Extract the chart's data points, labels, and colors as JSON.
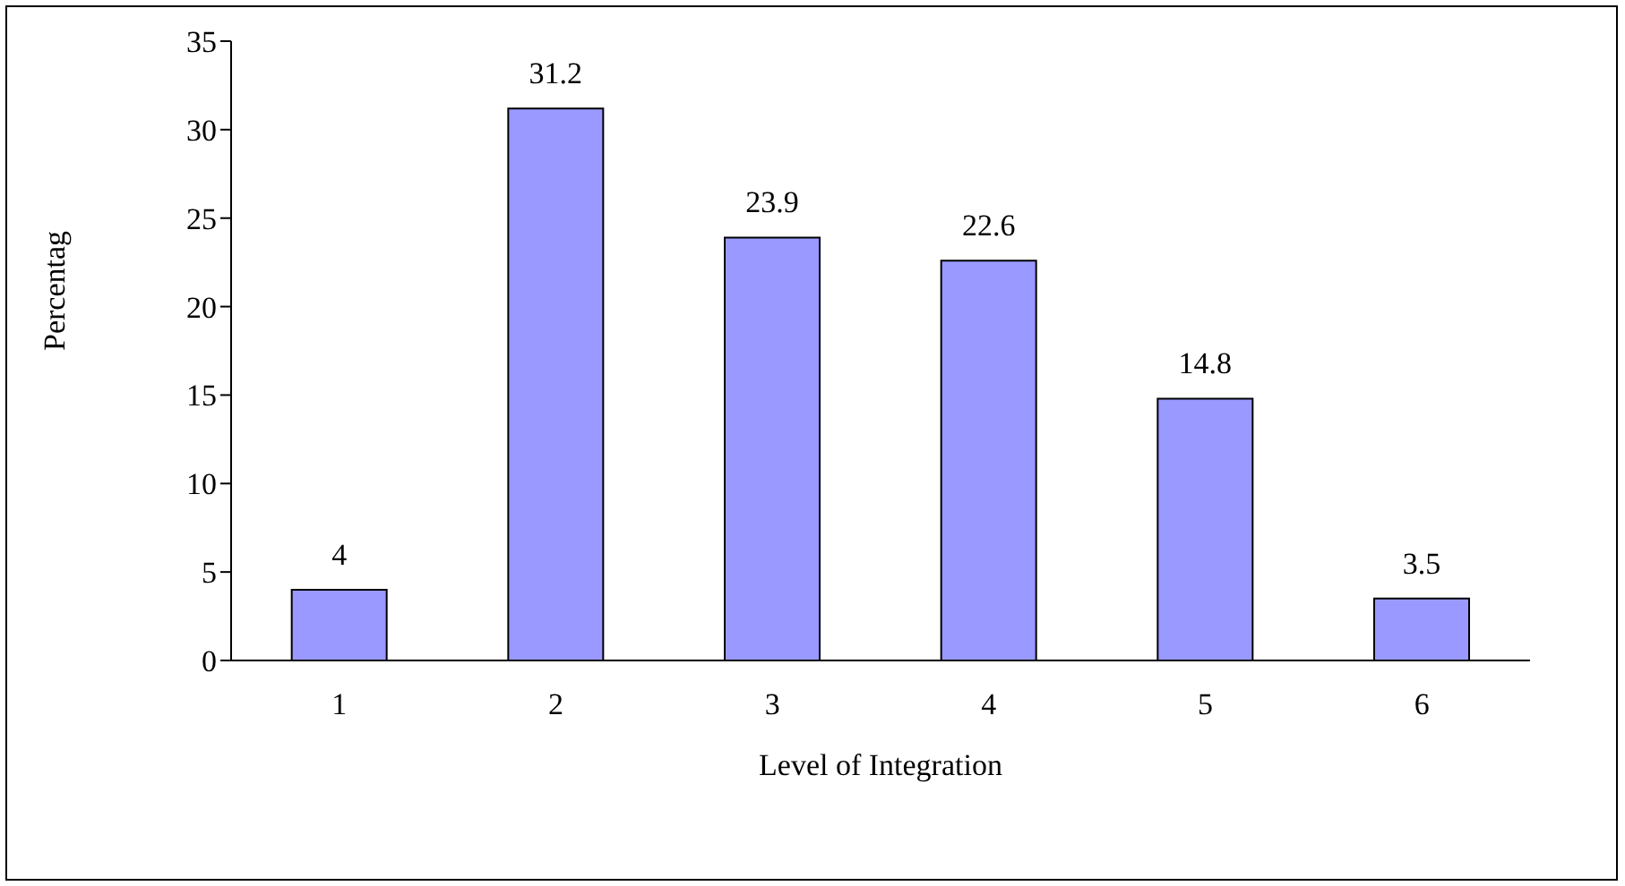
{
  "chart_data": {
    "type": "bar",
    "xlabel": "Level of Integration",
    "ylabel": "Percentag",
    "categories": [
      "1",
      "2",
      "3",
      "4",
      "5",
      "6"
    ],
    "values": [
      4,
      31.2,
      23.9,
      22.6,
      14.8,
      3.5
    ],
    "color": "#9999ff",
    "ylim": [
      0,
      35
    ],
    "yticks": [
      0,
      5,
      10,
      15,
      20,
      25,
      30,
      35
    ],
    "data_labels": true,
    "grid": false,
    "legend": false
  }
}
